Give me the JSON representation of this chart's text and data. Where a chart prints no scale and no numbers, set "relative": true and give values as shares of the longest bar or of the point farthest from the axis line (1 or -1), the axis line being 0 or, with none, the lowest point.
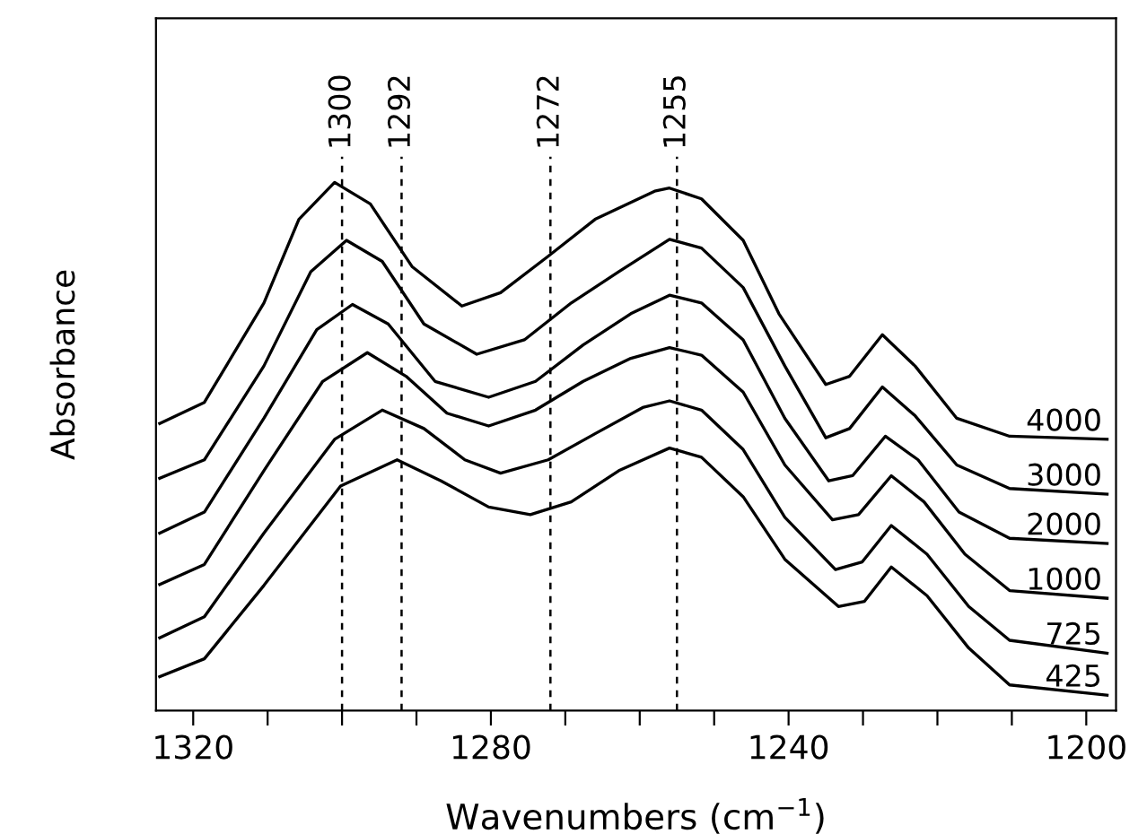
{
  "chart_data": {
    "type": "line",
    "relative": true,
    "xlabel": "Wavenumbers (cm$^{−1}$)",
    "ylabel": "Absorbance",
    "xlim": [
      1325,
      1196
    ],
    "xticks": [
      1320,
      {
        "value": 1310,
        "label": null
      },
      {
        "value": 1300,
        "label": null
      },
      {
        "value": 1290,
        "label": null
      },
      1280,
      {
        "value": 1270,
        "label": null
      },
      {
        "value": 1260,
        "label": null
      },
      {
        "value": 1250,
        "label": null
      },
      1240,
      {
        "value": 1230,
        "label": null
      },
      {
        "value": 1220,
        "label": null
      },
      {
        "value": 1210,
        "label": null
      },
      1200
    ],
    "tick_labels": "x",
    "grid": false,
    "legend": false,
    "ref_lines": [
      {
        "axis": "x",
        "value": 1300,
        "label": "1300",
        "line_style": "dashed",
        "color": "#000000"
      },
      {
        "axis": "x",
        "value": 1292,
        "label": "1292",
        "line_style": "dashed",
        "color": "#000000"
      },
      {
        "axis": "x",
        "value": 1272,
        "label": "1272",
        "line_style": "dashed",
        "color": "#000000"
      },
      {
        "axis": "x",
        "value": 1255,
        "label": "1255",
        "line_style": "dashed",
        "color": "#000000"
      }
    ],
    "series": [
      {
        "name": "4000",
        "color": "#000000",
        "x": [
          1324.5,
          1318.5,
          1310.5,
          1305.8,
          1301.0,
          1296.2,
          1290.6,
          1283.9,
          1278.7,
          1272.3,
          1266.0,
          1258.0,
          1256.0,
          1251.7,
          1246.1,
          1241.3,
          1235.0,
          1231.8,
          1227.4,
          1223.0,
          1217.4,
          1210.3,
          1197.2
        ],
        "values": [
          0.53,
          0.571,
          0.765,
          0.928,
          1.0,
          0.958,
          0.836,
          0.759,
          0.785,
          0.856,
          0.928,
          0.983,
          0.989,
          0.968,
          0.887,
          0.744,
          0.606,
          0.622,
          0.703,
          0.642,
          0.54,
          0.505,
          0.499
        ]
      },
      {
        "name": "3000",
        "color": "#000000",
        "x": [
          1324.5,
          1318.5,
          1310.5,
          1304.2,
          1299.4,
          1294.6,
          1289.0,
          1281.9,
          1275.5,
          1269.2,
          1262.8,
          1256.0,
          1251.7,
          1246.1,
          1240.5,
          1235.0,
          1231.8,
          1227.4,
          1223.0,
          1217.4,
          1210.3,
          1197.2
        ],
        "values": [
          0.423,
          0.459,
          0.642,
          0.826,
          0.887,
          0.846,
          0.724,
          0.665,
          0.693,
          0.765,
          0.826,
          0.889,
          0.872,
          0.795,
          0.642,
          0.502,
          0.52,
          0.601,
          0.545,
          0.449,
          0.403,
          0.392
        ]
      },
      {
        "name": "2000",
        "color": "#000000",
        "x": [
          1324.5,
          1318.5,
          1310.5,
          1303.4,
          1298.6,
          1293.8,
          1287.5,
          1280.3,
          1274.0,
          1267.6,
          1261.2,
          1256.0,
          1251.7,
          1246.1,
          1240.5,
          1234.6,
          1231.4,
          1227.0,
          1222.6,
          1217.1,
          1210.3,
          1197.2
        ],
        "values": [
          0.316,
          0.357,
          0.54,
          0.713,
          0.762,
          0.724,
          0.612,
          0.581,
          0.612,
          0.683,
          0.744,
          0.78,
          0.765,
          0.693,
          0.54,
          0.418,
          0.428,
          0.505,
          0.459,
          0.357,
          0.306,
          0.296
        ]
      },
      {
        "name": "1000",
        "color": "#000000",
        "x": [
          1324.5,
          1318.5,
          1310.5,
          1302.6,
          1296.6,
          1291.4,
          1285.9,
          1280.3,
          1274.0,
          1267.6,
          1261.2,
          1256.0,
          1251.7,
          1246.1,
          1240.5,
          1234.1,
          1230.6,
          1226.2,
          1221.8,
          1216.3,
          1210.3,
          1197.2
        ],
        "values": [
          0.216,
          0.255,
          0.438,
          0.612,
          0.668,
          0.622,
          0.55,
          0.525,
          0.556,
          0.612,
          0.657,
          0.678,
          0.663,
          0.591,
          0.449,
          0.342,
          0.352,
          0.428,
          0.377,
          0.275,
          0.204,
          0.189
        ]
      },
      {
        "name": "725",
        "color": "#000000",
        "x": [
          1324.5,
          1318.5,
          1310.5,
          1301.0,
          1294.6,
          1289.0,
          1283.5,
          1278.7,
          1272.3,
          1266.0,
          1259.6,
          1256.0,
          1251.7,
          1246.1,
          1240.5,
          1233.7,
          1230.1,
          1226.2,
          1221.4,
          1215.8,
          1210.3,
          1197.2
        ],
        "values": [
          0.112,
          0.153,
          0.316,
          0.499,
          0.556,
          0.52,
          0.459,
          0.433,
          0.459,
          0.51,
          0.561,
          0.574,
          0.556,
          0.479,
          0.347,
          0.245,
          0.26,
          0.331,
          0.275,
          0.173,
          0.107,
          0.082
        ]
      },
      {
        "name": "425",
        "color": "#000000",
        "x": [
          1324.5,
          1318.5,
          1310.5,
          1300.2,
          1292.6,
          1286.7,
          1280.3,
          1274.7,
          1269.2,
          1262.8,
          1256.0,
          1251.7,
          1246.1,
          1240.5,
          1233.3,
          1229.8,
          1226.2,
          1221.4,
          1215.8,
          1210.3,
          1197.2
        ],
        "values": [
          0.036,
          0.071,
          0.214,
          0.408,
          0.459,
          0.418,
          0.367,
          0.352,
          0.377,
          0.438,
          0.482,
          0.464,
          0.387,
          0.265,
          0.173,
          0.183,
          0.25,
          0.194,
          0.092,
          0.02,
          0.0
        ]
      }
    ]
  }
}
